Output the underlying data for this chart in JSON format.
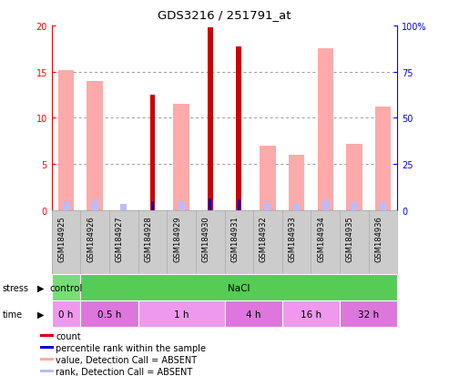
{
  "title": "GDS3216 / 251791_at",
  "samples": [
    "GSM184925",
    "GSM184926",
    "GSM184927",
    "GSM184928",
    "GSM184929",
    "GSM184930",
    "GSM184931",
    "GSM184932",
    "GSM184933",
    "GSM184934",
    "GSM184935",
    "GSM184936"
  ],
  "count_values": [
    0,
    0,
    0,
    12.5,
    0,
    19.8,
    17.7,
    0,
    0,
    0,
    0,
    0
  ],
  "percentile_values": [
    0,
    0,
    0,
    5.0,
    0,
    6.2,
    5.6,
    0,
    0,
    0,
    0,
    0
  ],
  "value_absent": [
    15.2,
    14.0,
    0,
    0,
    11.5,
    0,
    0,
    7.0,
    6.0,
    17.5,
    7.2,
    11.2
  ],
  "rank_absent": [
    5.0,
    5.2,
    3.5,
    0,
    5.0,
    0,
    0,
    4.0,
    3.2,
    5.5,
    4.5,
    4.5
  ],
  "ylim_left": [
    0,
    20
  ],
  "ylim_right": [
    0,
    100
  ],
  "yticks_left": [
    0,
    5,
    10,
    15,
    20
  ],
  "yticks_right": [
    0,
    25,
    50,
    75,
    100
  ],
  "stress_groups": [
    {
      "label": "control",
      "start": 0,
      "end": 1,
      "color": "#77dd77"
    },
    {
      "label": "NaCl",
      "start": 1,
      "end": 12,
      "color": "#55cc55"
    }
  ],
  "time_groups": [
    {
      "label": "0 h",
      "start": 0,
      "end": 1,
      "color": "#ee99ee"
    },
    {
      "label": "0.5 h",
      "start": 1,
      "end": 3,
      "color": "#dd77dd"
    },
    {
      "label": "1 h",
      "start": 3,
      "end": 6,
      "color": "#ee99ee"
    },
    {
      "label": "4 h",
      "start": 6,
      "end": 8,
      "color": "#dd77dd"
    },
    {
      "label": "16 h",
      "start": 8,
      "end": 10,
      "color": "#ee99ee"
    },
    {
      "label": "32 h",
      "start": 10,
      "end": 12,
      "color": "#dd77dd"
    }
  ],
  "color_count": "#cc0000",
  "color_percentile": "#0000cc",
  "color_value_absent": "#ffaaaa",
  "color_rank_absent": "#bbbbff",
  "grid_color": "#888888",
  "sample_bg": "#cccccc",
  "legend_items": [
    {
      "color": "#cc0000",
      "label": "count"
    },
    {
      "color": "#0000cc",
      "label": "percentile rank within the sample"
    },
    {
      "color": "#ffaaaa",
      "label": "value, Detection Call = ABSENT"
    },
    {
      "color": "#bbbbff",
      "label": "rank, Detection Call = ABSENT"
    }
  ]
}
